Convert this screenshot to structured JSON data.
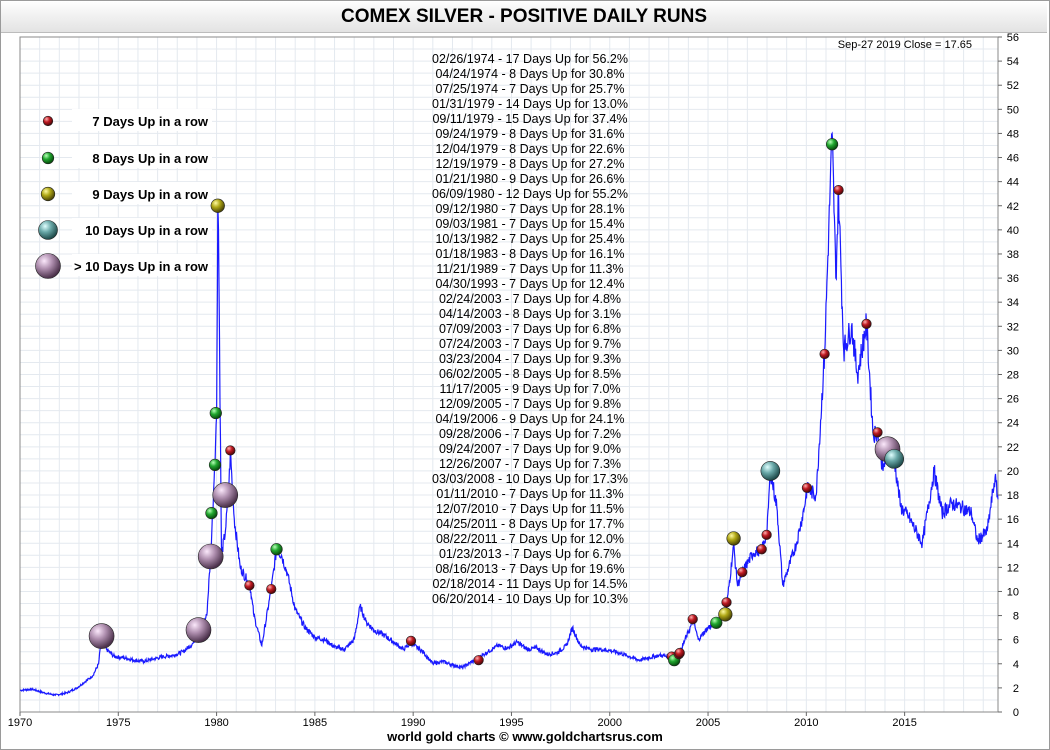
{
  "header": {
    "title": "COMEX SILVER - POSITIVE DAILY RUNS"
  },
  "footer": {
    "credit": "world gold charts © www.goldchartsrus.com"
  },
  "last_quote": "Sep-27  2019    Close = 17.65",
  "colors": {
    "line": "#1a1aff",
    "red": "#a8101c",
    "green": "#1a9a2a",
    "olive": "#a8a010",
    "teal": "#5a9a9a",
    "mauve": "#a888a8"
  },
  "legend": [
    {
      "label": "7 Days Up in a row",
      "color": "red"
    },
    {
      "label": "8 Days Up in a row",
      "color": "green"
    },
    {
      "label": "9 Days Up in a row",
      "color": "olive"
    },
    {
      "label": "10 Days Up in a row",
      "color": "teal"
    },
    {
      "label": "> 10 Days Up in a row",
      "color": "mauve"
    }
  ],
  "runs": [
    "02/26/1974 - 17 Days Up for 56.2%",
    "04/24/1974 - 8 Days Up for 30.8%",
    "07/25/1974 - 7 Days Up for 25.7%",
    "01/31/1979 - 14 Days Up for 13.0%",
    "09/11/1979 - 15 Days Up for 37.4%",
    "09/24/1979 - 8 Days Up for 31.6%",
    "12/04/1979 - 8 Days Up for 22.6%",
    "12/19/1979 - 8 Days Up for 27.2%",
    "01/21/1980 - 9 Days Up for 26.6%",
    "06/09/1980 - 12 Days Up for 55.2%",
    "09/12/1980 - 7 Days Up for 28.1%",
    "09/03/1981 - 7 Days Up for 15.4%",
    "10/13/1982 - 7 Days Up for 25.4%",
    "01/18/1983 - 8 Days Up for 16.1%",
    "11/21/1989 - 7 Days Up for 11.3%",
    "04/30/1993 - 7 Days Up for 12.4%",
    "02/24/2003 - 7 Days Up for 4.8%",
    "04/14/2003 - 8 Days Up for 3.1%",
    "07/09/2003 - 7 Days Up for 6.8%",
    "07/24/2003 - 7 Days Up for 9.7%",
    "03/23/2004 - 7 Days Up for 9.3%",
    "06/02/2005 - 8 Days Up for 8.5%",
    "11/17/2005 - 9 Days Up for 7.0%",
    "12/09/2005 - 7 Days Up for 9.8%",
    "04/19/2006 - 9 Days Up for 24.1%",
    "09/28/2006 - 7 Days Up for 7.2%",
    "09/24/2007 - 7 Days Up for 9.0%",
    "12/26/2007 - 7 Days Up for 7.3%",
    "03/03/2008 - 10 Days Up for 17.3%",
    "01/11/2010 - 7 Days Up for 11.3%",
    "12/07/2010 - 7 Days Up for 11.5%",
    "04/25/2011 - 8 Days Up for 17.7%",
    "08/22/2011 - 7 Days Up for 12.0%",
    "01/23/2013 - 7 Days Up for 6.7%",
    "08/16/2013 - 7 Days Up for 19.6%",
    "02/18/2014 - 11 Days Up for 14.5%",
    "06/20/2014 - 10 Days Up for 10.3%"
  ],
  "chart_data": {
    "type": "line",
    "title": "COMEX SILVER - POSITIVE DAILY RUNS",
    "x_label": "",
    "y_label": "",
    "x_ticks": [
      1970,
      1975,
      1980,
      1985,
      1990,
      1995,
      2000,
      2005,
      2010,
      2015
    ],
    "y_ticks": [
      0,
      2,
      4,
      6,
      8,
      10,
      12,
      14,
      16,
      18,
      20,
      22,
      24,
      26,
      28,
      30,
      32,
      34,
      36,
      38,
      40,
      42,
      44,
      46,
      48,
      50,
      52,
      54,
      56
    ],
    "x_range": [
      1970.0,
      2019.75
    ],
    "y_range": [
      0,
      56
    ],
    "y_axis_side": "right",
    "grid": true,
    "series": [
      {
        "values_note": "approximate silver price path read from the chart (year, USD/oz)",
        "points": [
          [
            1970.0,
            1.8
          ],
          [
            1970.6,
            1.9
          ],
          [
            1971.2,
            1.6
          ],
          [
            1971.8,
            1.4
          ],
          [
            1972.4,
            1.6
          ],
          [
            1972.9,
            2.0
          ],
          [
            1973.3,
            2.5
          ],
          [
            1973.7,
            3.0
          ],
          [
            1974.0,
            4.0
          ],
          [
            1974.15,
            6.3
          ],
          [
            1974.4,
            5.2
          ],
          [
            1974.8,
            4.6
          ],
          [
            1975.3,
            4.5
          ],
          [
            1975.8,
            4.3
          ],
          [
            1976.3,
            4.2
          ],
          [
            1976.8,
            4.4
          ],
          [
            1977.3,
            4.6
          ],
          [
            1977.8,
            4.7
          ],
          [
            1978.3,
            5.0
          ],
          [
            1978.8,
            5.7
          ],
          [
            1979.08,
            6.6
          ],
          [
            1979.5,
            8.0
          ],
          [
            1979.7,
            13.0
          ],
          [
            1979.8,
            16.5
          ],
          [
            1979.9,
            20.5
          ],
          [
            1980.0,
            24.5
          ],
          [
            1980.06,
            42.0
          ],
          [
            1980.1,
            40.0
          ],
          [
            1980.25,
            13.0
          ],
          [
            1980.45,
            15.0
          ],
          [
            1980.6,
            18.0
          ],
          [
            1980.7,
            21.5
          ],
          [
            1980.9,
            16.0
          ],
          [
            1981.2,
            12.0
          ],
          [
            1981.7,
            10.5
          ],
          [
            1981.9,
            8.0
          ],
          [
            1982.3,
            5.5
          ],
          [
            1982.78,
            10.2
          ],
          [
            1983.05,
            13.5
          ],
          [
            1983.3,
            13.0
          ],
          [
            1983.6,
            11.5
          ],
          [
            1984.0,
            8.5
          ],
          [
            1984.5,
            7.0
          ],
          [
            1985.0,
            6.2
          ],
          [
            1985.5,
            6.0
          ],
          [
            1986.0,
            5.4
          ],
          [
            1986.5,
            5.2
          ],
          [
            1987.0,
            6.0
          ],
          [
            1987.3,
            8.8
          ],
          [
            1987.6,
            7.5
          ],
          [
            1988.0,
            6.8
          ],
          [
            1988.5,
            6.4
          ],
          [
            1989.0,
            5.8
          ],
          [
            1989.5,
            5.2
          ],
          [
            1989.9,
            5.7
          ],
          [
            1990.5,
            5.0
          ],
          [
            1991.0,
            4.0
          ],
          [
            1991.5,
            4.2
          ],
          [
            1992.0,
            3.9
          ],
          [
            1992.5,
            3.7
          ],
          [
            1993.33,
            4.5
          ],
          [
            1993.8,
            5.0
          ],
          [
            1994.3,
            5.5
          ],
          [
            1994.8,
            5.3
          ],
          [
            1995.3,
            5.8
          ],
          [
            1995.8,
            5.2
          ],
          [
            1996.3,
            5.3
          ],
          [
            1996.8,
            4.8
          ],
          [
            1997.3,
            4.9
          ],
          [
            1997.8,
            5.5
          ],
          [
            1998.1,
            7.0
          ],
          [
            1998.5,
            5.5
          ],
          [
            1999.0,
            5.2
          ],
          [
            1999.5,
            5.2
          ],
          [
            2000.0,
            5.1
          ],
          [
            2000.5,
            4.9
          ],
          [
            2001.0,
            4.6
          ],
          [
            2001.5,
            4.3
          ],
          [
            2002.0,
            4.5
          ],
          [
            2002.5,
            4.7
          ],
          [
            2003.15,
            4.6
          ],
          [
            2003.55,
            4.9
          ],
          [
            2004.25,
            7.6
          ],
          [
            2004.5,
            6.0
          ],
          [
            2005.0,
            7.0
          ],
          [
            2005.42,
            7.4
          ],
          [
            2005.9,
            8.1
          ],
          [
            2006.3,
            13.8
          ],
          [
            2006.5,
            10.5
          ],
          [
            2006.75,
            11.6
          ],
          [
            2007.3,
            13.2
          ],
          [
            2007.73,
            13.5
          ],
          [
            2008.0,
            14.9
          ],
          [
            2008.17,
            20.0
          ],
          [
            2008.5,
            17.0
          ],
          [
            2008.8,
            10.5
          ],
          [
            2009.0,
            11.5
          ],
          [
            2009.5,
            14.0
          ],
          [
            2009.9,
            17.0
          ],
          [
            2010.03,
            18.5
          ],
          [
            2010.5,
            18.0
          ],
          [
            2010.93,
            29.8
          ],
          [
            2011.31,
            48.0
          ],
          [
            2011.5,
            36.0
          ],
          [
            2011.64,
            43.0
          ],
          [
            2011.9,
            30.0
          ],
          [
            2012.3,
            32.0
          ],
          [
            2012.6,
            28.0
          ],
          [
            2013.06,
            32.2
          ],
          [
            2013.4,
            23.0
          ],
          [
            2013.62,
            23.3
          ],
          [
            2013.9,
            20.0
          ],
          [
            2014.13,
            21.8
          ],
          [
            2014.47,
            21.0
          ],
          [
            2014.8,
            17.0
          ],
          [
            2015.2,
            16.2
          ],
          [
            2015.9,
            14.0
          ],
          [
            2016.5,
            20.0
          ],
          [
            2016.9,
            16.5
          ],
          [
            2017.4,
            17.3
          ],
          [
            2017.9,
            17.0
          ],
          [
            2018.4,
            16.5
          ],
          [
            2018.7,
            14.2
          ],
          [
            2019.2,
            15.0
          ],
          [
            2019.6,
            19.5
          ],
          [
            2019.75,
            17.65
          ]
        ]
      }
    ],
    "markers": [
      {
        "x": 1974.15,
        "y": 6.3,
        "cat": "mauve"
      },
      {
        "x": 1979.08,
        "y": 6.8,
        "cat": "mauve"
      },
      {
        "x": 1979.7,
        "y": 12.9,
        "cat": "mauve"
      },
      {
        "x": 1979.74,
        "y": 16.5,
        "cat": "green"
      },
      {
        "x": 1979.92,
        "y": 20.5,
        "cat": "green"
      },
      {
        "x": 1979.96,
        "y": 24.8,
        "cat": "green"
      },
      {
        "x": 1980.06,
        "y": 42.0,
        "cat": "olive"
      },
      {
        "x": 1980.44,
        "y": 18.0,
        "cat": "mauve"
      },
      {
        "x": 1980.7,
        "y": 21.7,
        "cat": "red"
      },
      {
        "x": 1981.67,
        "y": 10.5,
        "cat": "red"
      },
      {
        "x": 1982.78,
        "y": 10.2,
        "cat": "red"
      },
      {
        "x": 1983.05,
        "y": 13.5,
        "cat": "green"
      },
      {
        "x": 1989.89,
        "y": 5.9,
        "cat": "red"
      },
      {
        "x": 1993.33,
        "y": 4.3,
        "cat": "red"
      },
      {
        "x": 2003.15,
        "y": 4.6,
        "cat": "red"
      },
      {
        "x": 2003.28,
        "y": 4.3,
        "cat": "green"
      },
      {
        "x": 2003.52,
        "y": 4.8,
        "cat": "red"
      },
      {
        "x": 2003.56,
        "y": 4.9,
        "cat": "red"
      },
      {
        "x": 2004.22,
        "y": 7.7,
        "cat": "red"
      },
      {
        "x": 2005.42,
        "y": 7.4,
        "cat": "green"
      },
      {
        "x": 2005.88,
        "y": 8.1,
        "cat": "olive"
      },
      {
        "x": 2005.94,
        "y": 9.1,
        "cat": "red"
      },
      {
        "x": 2006.3,
        "y": 14.4,
        "cat": "olive"
      },
      {
        "x": 2006.74,
        "y": 11.6,
        "cat": "red"
      },
      {
        "x": 2007.73,
        "y": 13.5,
        "cat": "red"
      },
      {
        "x": 2007.98,
        "y": 14.7,
        "cat": "red"
      },
      {
        "x": 2008.17,
        "y": 20.0,
        "cat": "teal"
      },
      {
        "x": 2010.03,
        "y": 18.6,
        "cat": "red"
      },
      {
        "x": 2010.93,
        "y": 29.7,
        "cat": "red"
      },
      {
        "x": 2011.31,
        "y": 47.1,
        "cat": "green"
      },
      {
        "x": 2011.64,
        "y": 43.3,
        "cat": "red"
      },
      {
        "x": 2013.06,
        "y": 32.2,
        "cat": "red"
      },
      {
        "x": 2013.62,
        "y": 23.2,
        "cat": "red"
      },
      {
        "x": 2014.13,
        "y": 21.8,
        "cat": "mauve"
      },
      {
        "x": 2014.47,
        "y": 21.0,
        "cat": "teal"
      }
    ]
  }
}
